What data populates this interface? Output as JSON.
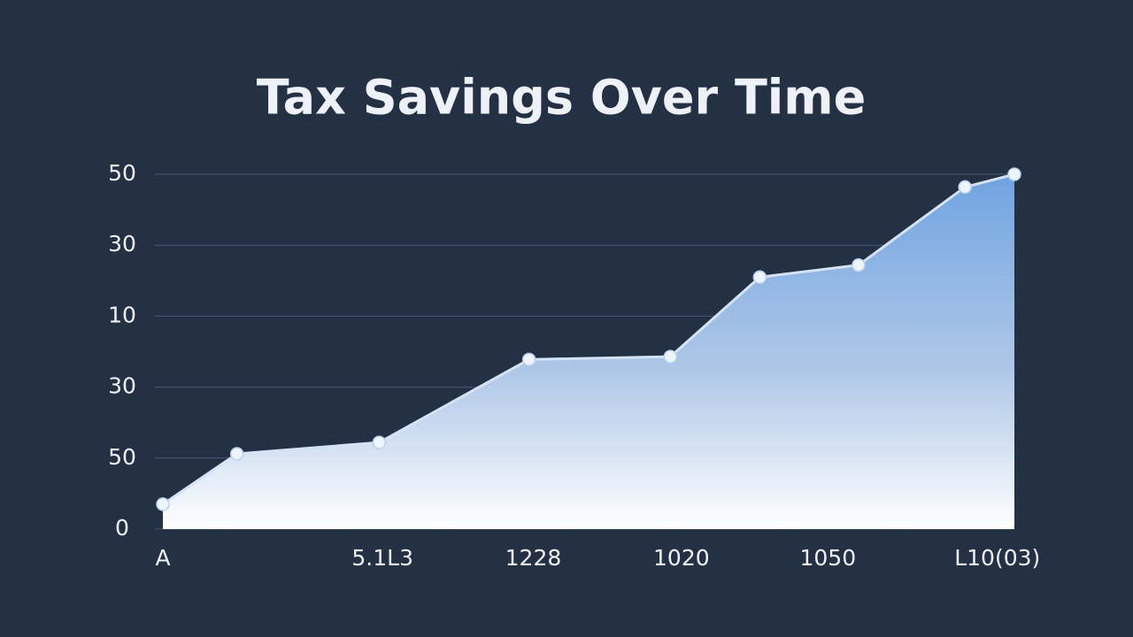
{
  "chart_data": {
    "type": "area",
    "title": "Tax Savings Over Time",
    "x": [
      0,
      8.7,
      25.4,
      43.0,
      59.6,
      70.1,
      81.7,
      94.2,
      100
    ],
    "series": [
      {
        "color": "#6fa3e0",
        "values": [
          0.35,
          1.06,
          1.22,
          2.39,
          2.43,
          3.55,
          3.72,
          4.82,
          5.0
        ]
      }
    ],
    "xlim": [
      0,
      100
    ],
    "xticks": [
      {
        "value": 0,
        "label": "A"
      },
      {
        "value": 25.8,
        "label": "5.1L3"
      },
      {
        "value": 43.5,
        "label": "1228"
      },
      {
        "value": 60.9,
        "label": "1020"
      },
      {
        "value": 78.1,
        "label": "1050"
      },
      {
        "value": 98,
        "label": "L10(03)"
      }
    ],
    "ylim": [
      0,
      5
    ],
    "yticks": [
      {
        "value": 0,
        "label": "0"
      },
      {
        "value": 1,
        "label": "50"
      },
      {
        "value": 2,
        "label": "30"
      },
      {
        "value": 3,
        "label": "10"
      },
      {
        "value": 4,
        "label": "30"
      },
      {
        "value": 5,
        "label": "50"
      }
    ],
    "grid": true
  }
}
